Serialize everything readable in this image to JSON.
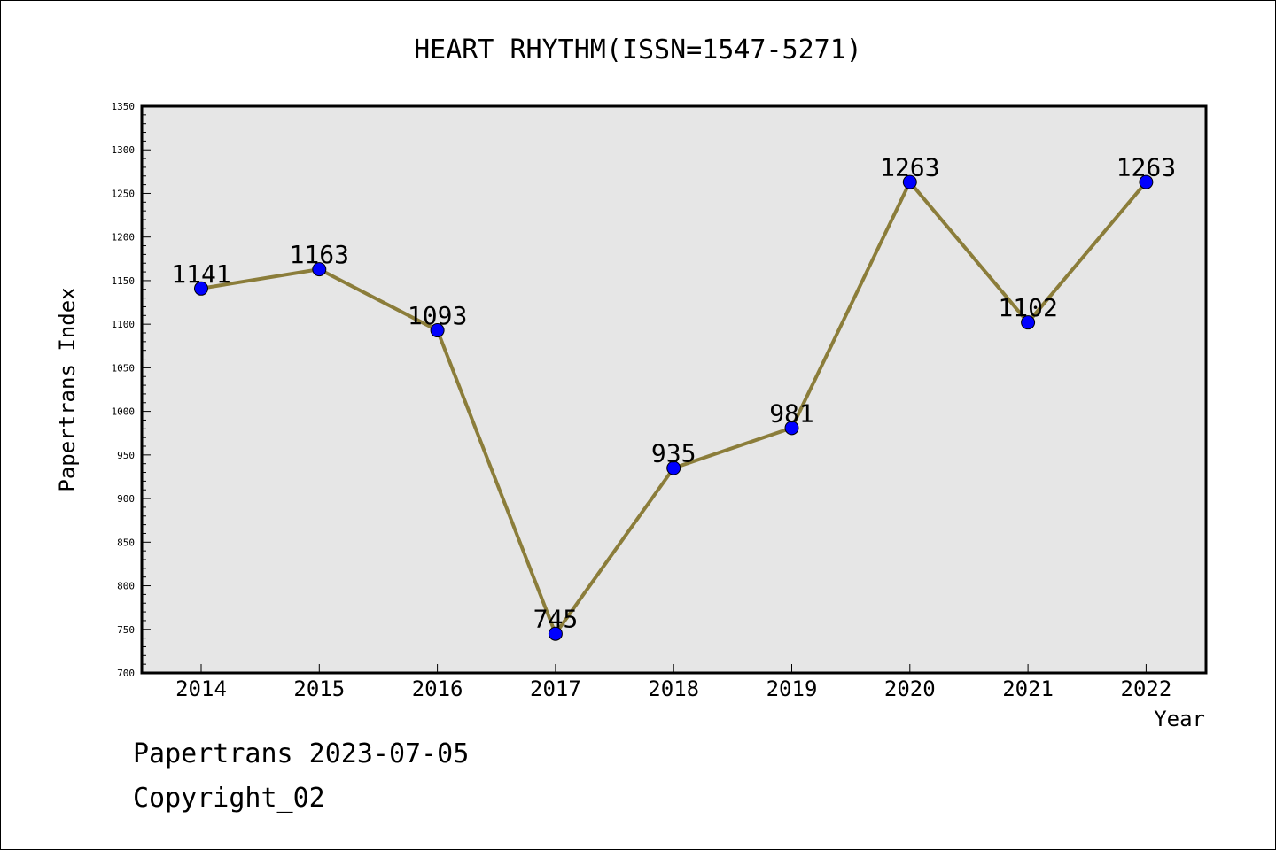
{
  "chart_data": {
    "type": "line",
    "title": "HEART RHYTHM(ISSN=1547-5271)",
    "xlabel": "Year",
    "ylabel": "Papertrans Index",
    "categories": [
      "2014",
      "2015",
      "2016",
      "2017",
      "2018",
      "2019",
      "2020",
      "2021",
      "2022"
    ],
    "series": [
      {
        "values": [
          1141,
          1163,
          1093,
          745,
          935,
          981,
          1263,
          1102,
          1263
        ],
        "line_color": "#8b7d3a",
        "marker_color": "#0000ff"
      }
    ],
    "ylim": [
      700,
      1350
    ],
    "yticks": [
      "700",
      "750",
      "800",
      "850",
      "900",
      "950",
      "1000",
      "1050",
      "1100",
      "1150",
      "1200",
      "1250",
      "1300",
      "1350"
    ],
    "plot_background": "#e6e6e6",
    "grid": false,
    "legend": "none"
  },
  "footer": {
    "line1": "Papertrans 2023-07-05",
    "line2": "Copyright_02"
  }
}
